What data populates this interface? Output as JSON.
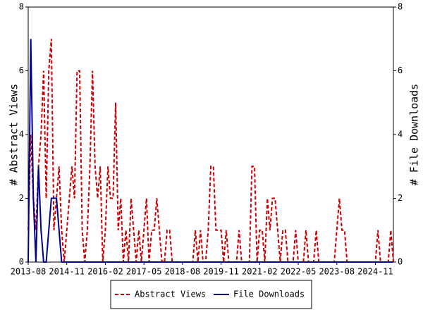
{
  "chart_data": {
    "type": "line",
    "ylabel": "# Abstract Views",
    "y2label": "# File Downloads",
    "categories": [
      "2013-08",
      null,
      null,
      null,
      null,
      null,
      null,
      null,
      null,
      null,
      null,
      null,
      null,
      null,
      null,
      "2014-11",
      null,
      null,
      null,
      null,
      null,
      null,
      null,
      null,
      null,
      null,
      null,
      null,
      null,
      null,
      "2016-02",
      null,
      null,
      null,
      null,
      null,
      null,
      null,
      null,
      null,
      null,
      null,
      null,
      null,
      null,
      "2017-05",
      null,
      null,
      null,
      null,
      null,
      null,
      null,
      null,
      null,
      null,
      null,
      null,
      null,
      null,
      "2018-08",
      null,
      null,
      null,
      null,
      null,
      null,
      null,
      null,
      null,
      null,
      null,
      null,
      null,
      null,
      "2019-11",
      null,
      null,
      null,
      null,
      null,
      null,
      null,
      null,
      null,
      null,
      null,
      null,
      null,
      null,
      "2021-02",
      null,
      null,
      null,
      null,
      null,
      null,
      null,
      null,
      null,
      null,
      null,
      null,
      null,
      null,
      "2022-05",
      null,
      null,
      null,
      null,
      null,
      null,
      null,
      null,
      null,
      null,
      null,
      null,
      null,
      null,
      "2023-08",
      null,
      null,
      null,
      null,
      null,
      null,
      null,
      null,
      null,
      null,
      null,
      null,
      null,
      null,
      "2024-11",
      null,
      null,
      null,
      null,
      null,
      null,
      null
    ],
    "series": [
      {
        "name": "Abstract Views",
        "color": "#cc0000",
        "dash": true,
        "values": [
          1,
          4,
          2,
          1,
          3,
          4,
          6,
          2,
          6,
          7,
          1,
          2,
          3,
          1,
          0,
          1,
          2,
          3,
          2,
          6,
          6,
          1,
          0,
          1,
          3,
          6,
          3,
          2,
          3,
          0,
          1,
          3,
          2,
          2,
          5,
          1,
          2,
          0,
          1,
          0,
          2,
          1,
          0,
          1,
          0,
          1,
          2,
          0,
          1,
          1,
          2,
          1,
          0,
          0,
          1,
          1,
          0,
          0,
          0,
          0,
          0,
          0,
          0,
          0,
          0,
          1,
          0,
          1,
          0,
          0,
          1,
          3,
          3,
          1,
          1,
          1,
          0,
          1,
          0,
          0,
          0,
          0,
          1,
          0,
          0,
          0,
          0,
          3,
          3,
          0,
          1,
          1,
          0,
          2,
          1,
          2,
          2,
          1,
          0,
          1,
          1,
          0,
          0,
          0,
          1,
          0,
          0,
          0,
          1,
          0,
          0,
          0,
          1,
          0,
          0,
          0,
          0,
          0,
          0,
          0,
          1,
          2,
          1,
          1,
          0,
          0,
          0,
          0,
          0,
          0,
          0,
          0,
          0,
          0,
          0,
          0,
          1,
          0,
          0,
          0,
          0,
          1,
          0
        ]
      },
      {
        "name": "File Downloads",
        "color": "#00008b",
        "dash": false,
        "axis": "y2",
        "values": [
          0,
          7,
          2,
          0,
          3,
          1,
          0,
          0,
          1,
          2,
          2,
          2,
          1,
          0,
          0,
          0,
          0,
          0,
          0,
          0,
          0,
          0,
          0,
          0,
          0,
          0,
          0,
          0,
          0,
          0,
          0,
          0,
          0,
          0,
          0,
          0,
          0,
          0,
          0,
          0,
          0,
          0,
          0,
          0,
          0,
          0,
          0,
          0,
          0,
          0,
          0,
          0,
          0,
          0,
          0,
          0,
          0,
          0,
          0,
          0,
          0,
          0,
          0,
          0,
          0,
          0,
          0,
          0,
          0,
          0,
          0,
          0,
          0,
          0,
          0,
          0,
          0,
          0,
          0,
          0,
          0,
          0,
          0,
          0,
          0,
          0,
          0,
          0,
          0,
          0,
          0,
          0,
          0,
          0,
          0,
          0,
          0,
          0,
          0,
          0,
          0,
          0,
          0,
          0,
          0,
          0,
          0,
          0,
          0,
          0,
          0,
          0,
          0,
          0,
          0,
          0,
          0,
          0,
          0,
          0,
          0,
          0,
          0,
          0,
          0,
          0,
          0,
          0,
          0,
          0,
          0,
          0,
          0,
          0,
          0,
          0,
          0,
          0,
          0,
          0,
          0,
          0,
          0
        ]
      }
    ],
    "ylim": [
      0,
      8
    ],
    "yticks": [
      0,
      2,
      4,
      6,
      8
    ],
    "y2lim": [
      0,
      8
    ],
    "y2ticks": [
      0,
      2,
      4,
      6,
      8
    ]
  }
}
